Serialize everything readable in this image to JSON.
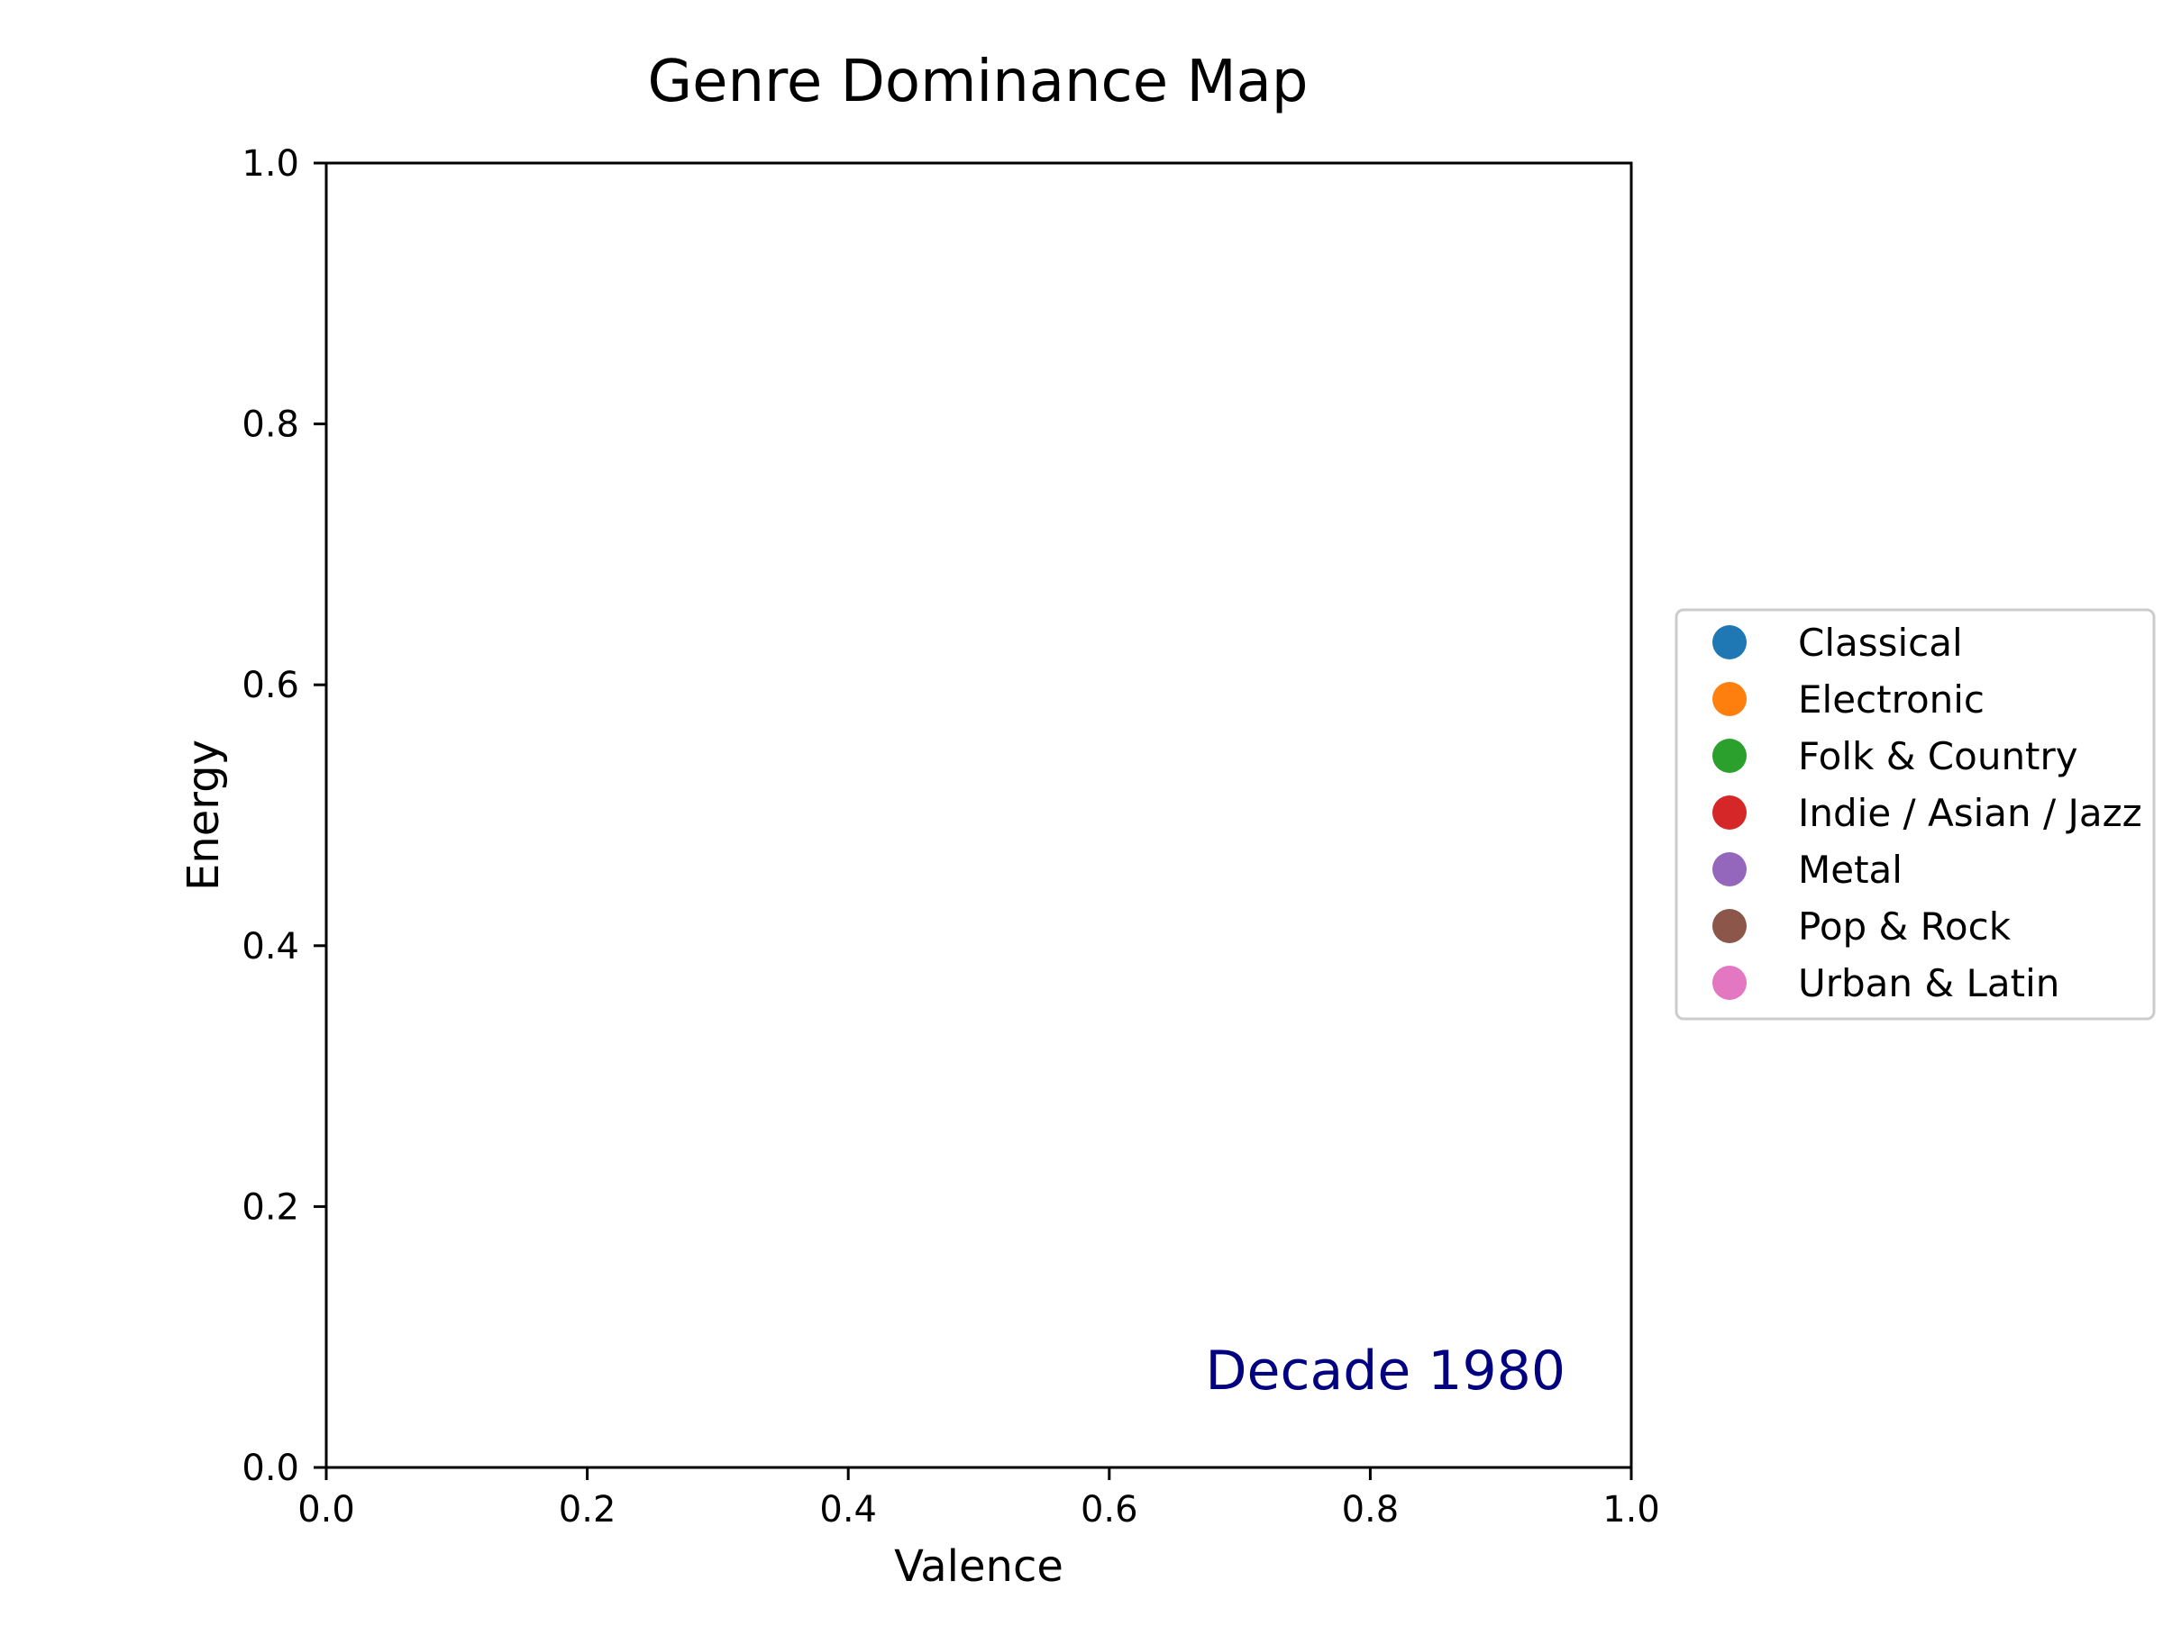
{
  "chart_data": {
    "type": "scatter",
    "title": "Genre Dominance Map",
    "xlabel": "Valence",
    "ylabel": "Energy",
    "xlim": [
      0.0,
      1.0
    ],
    "ylim": [
      0.0,
      1.0
    ],
    "x_ticks": [
      "0.0",
      "0.2",
      "0.4",
      "0.6",
      "0.8",
      "1.0"
    ],
    "y_ticks": [
      "0.0",
      "0.2",
      "0.4",
      "0.6",
      "0.8",
      "1.0"
    ],
    "grid": false,
    "legend_position": "center-right outside plot",
    "annotation": {
      "text": "Decade 1980",
      "color": "#000080"
    },
    "series": [
      {
        "name": "Classical",
        "color": "#1f77b4",
        "points": []
      },
      {
        "name": "Electronic",
        "color": "#ff7f0e",
        "points": []
      },
      {
        "name": "Folk & Country",
        "color": "#2ca02c",
        "points": []
      },
      {
        "name": "Indie / Asian / Jazz",
        "color": "#d62728",
        "points": []
      },
      {
        "name": "Metal",
        "color": "#9467bd",
        "points": []
      },
      {
        "name": "Pop & Rock",
        "color": "#8c564b",
        "points": []
      },
      {
        "name": "Urban & Latin",
        "color": "#e377c2",
        "points": []
      }
    ]
  }
}
